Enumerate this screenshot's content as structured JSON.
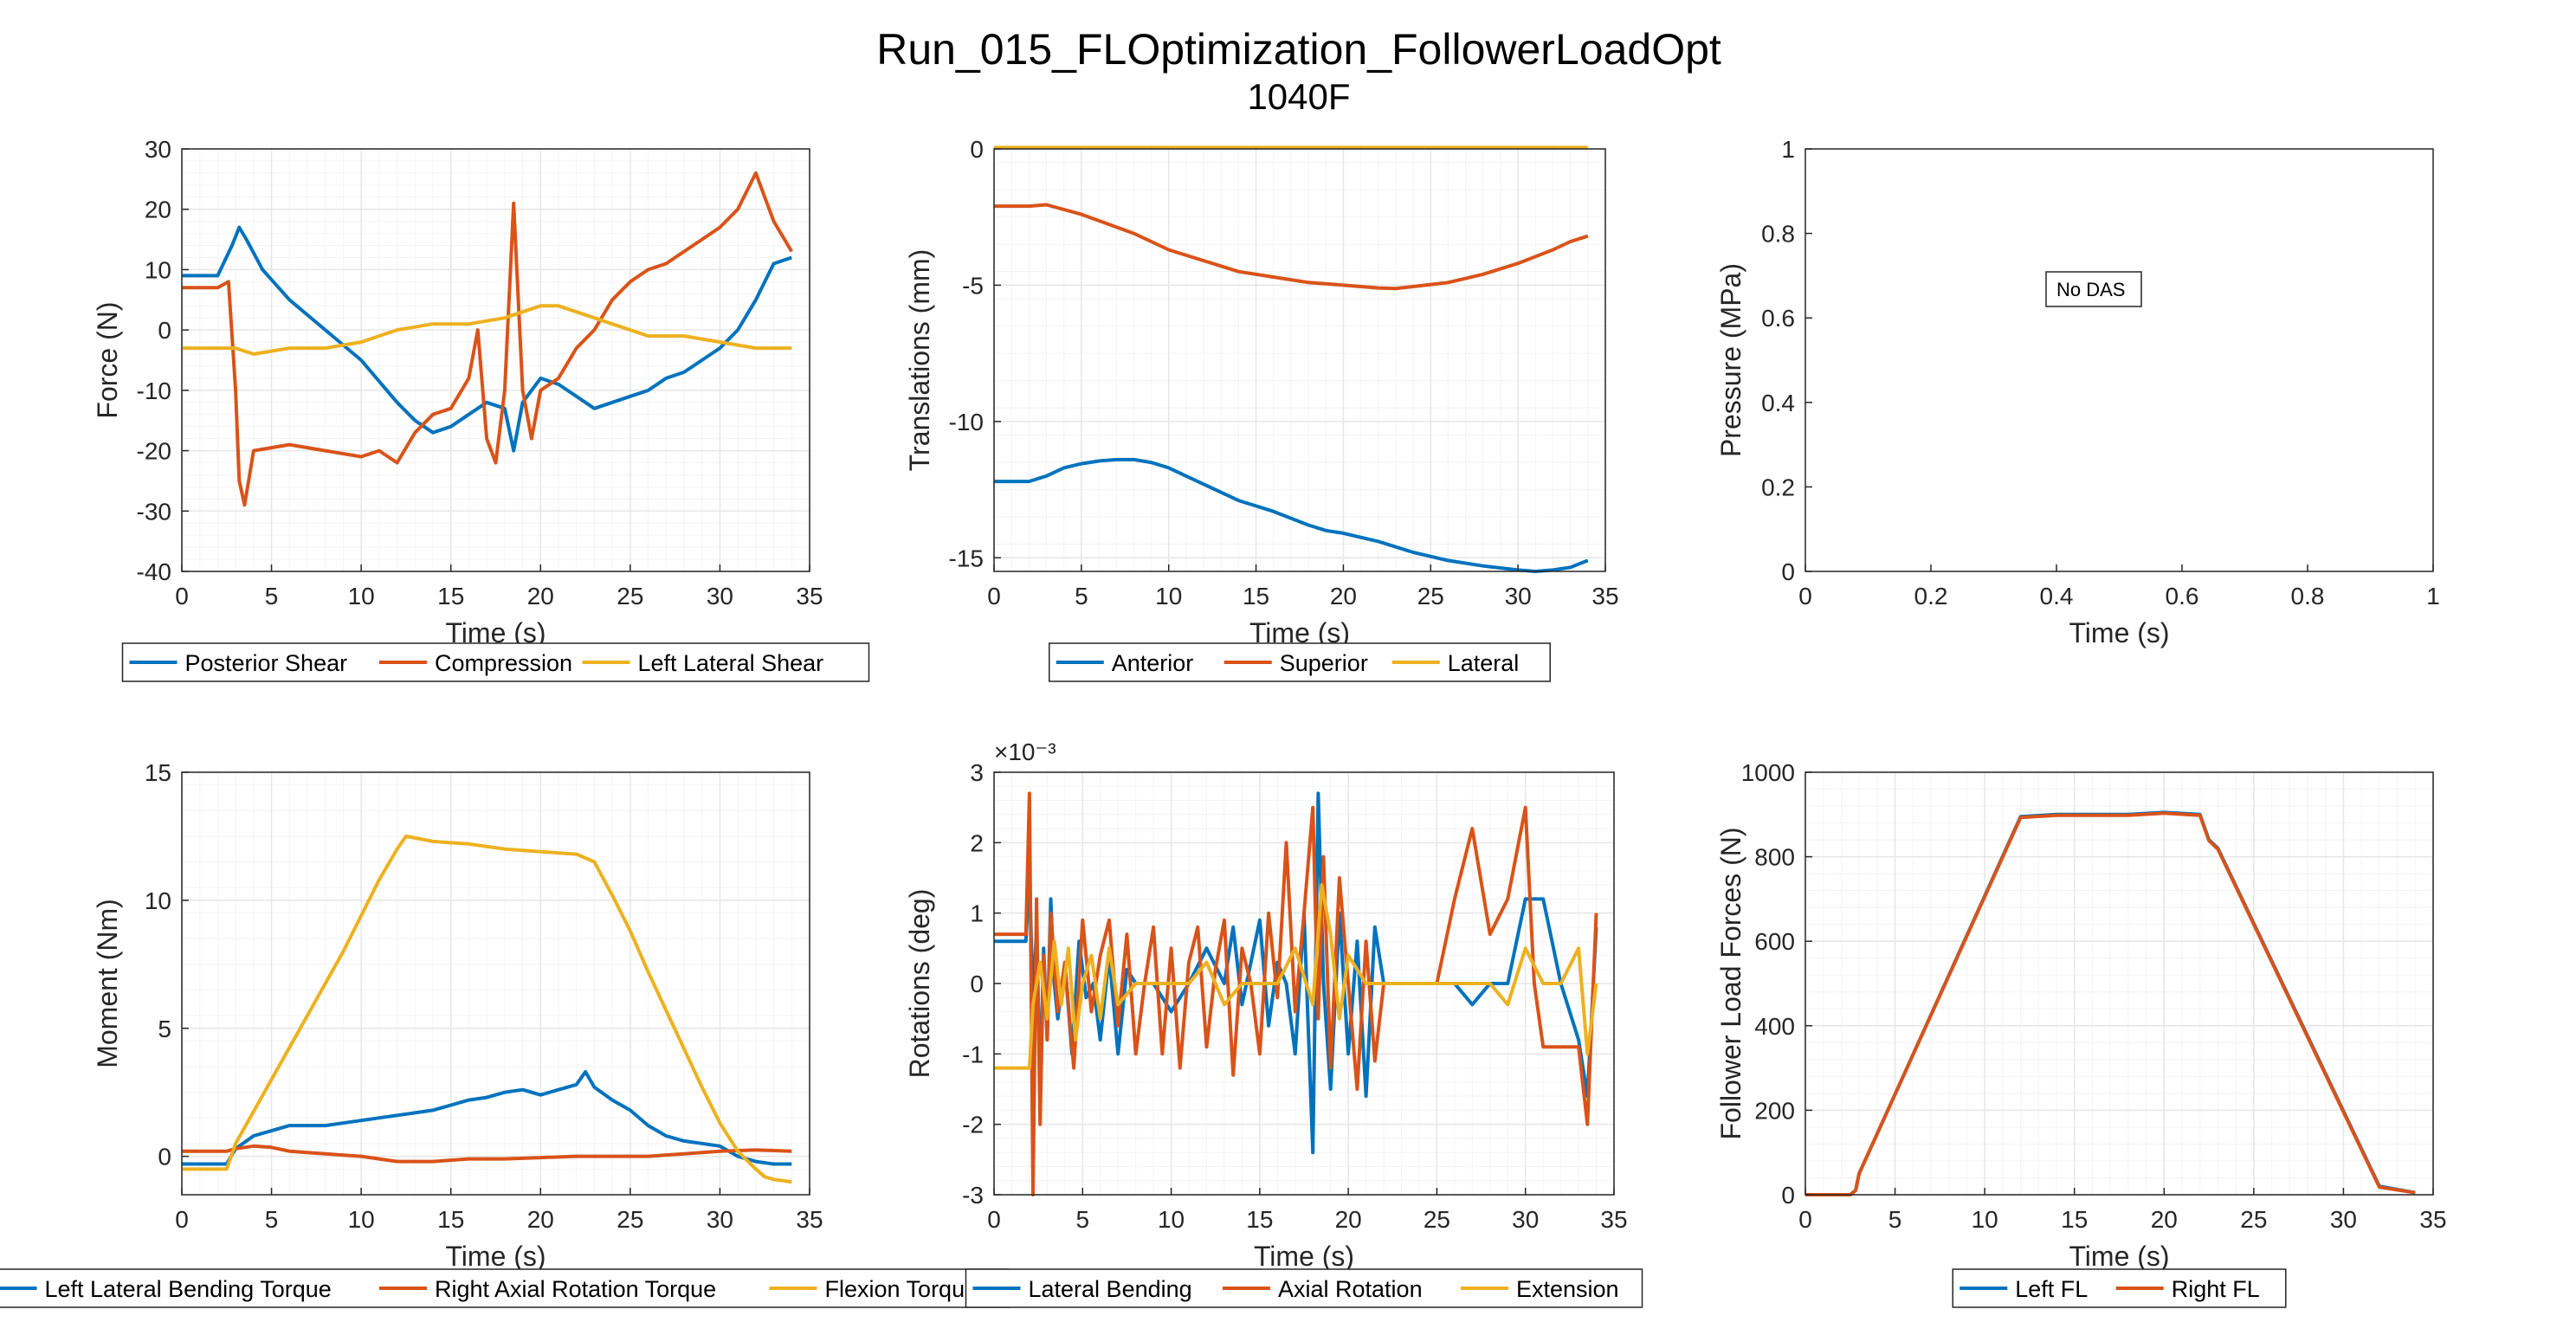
{
  "figure": {
    "title": "Run_015_FLOptimization_FollowerLoadOpt",
    "subtitle": "1040F"
  },
  "colors": {
    "blue": "#0072BD",
    "orange": "#D95319",
    "yellow": "#EDB120",
    "axis": "#262626",
    "grid": "#e6e6e6",
    "minor_grid": "#f3f3f3"
  },
  "chart_data": [
    {
      "type": "line",
      "xlabel": "Time (s)",
      "ylabel": "Force (N)",
      "xlim": [
        0,
        35
      ],
      "ylim": [
        -40,
        30
      ],
      "xticks": [
        0,
        5,
        10,
        15,
        20,
        25,
        30,
        35
      ],
      "yticks": [
        -40,
        -30,
        -20,
        -10,
        0,
        10,
        20,
        30
      ],
      "grid": true,
      "legend": "below",
      "series": [
        {
          "name": "Posterior Shear",
          "color": "blue",
          "x": [
            0,
            2,
            2.8,
            3.2,
            3.6,
            4.5,
            6,
            8,
            10,
            12,
            13,
            14,
            15,
            16,
            17,
            18,
            18.5,
            19,
            20,
            21,
            22,
            23,
            24,
            25,
            26,
            27,
            28,
            29,
            30,
            31,
            32,
            33,
            34
          ],
          "y": [
            9,
            9,
            14,
            17,
            15,
            10,
            5,
            0,
            -5,
            -12,
            -15,
            -17,
            -16,
            -14,
            -12,
            -13,
            -20,
            -12,
            -8,
            -9,
            -11,
            -13,
            -12,
            -11,
            -10,
            -8,
            -7,
            -5,
            -3,
            0,
            5,
            11,
            12
          ]
        },
        {
          "name": "Compression",
          "color": "orange",
          "x": [
            0,
            2,
            2.6,
            3.0,
            3.2,
            3.5,
            4,
            6,
            8,
            10,
            11,
            12,
            13,
            14,
            15,
            16,
            16.5,
            17,
            17.5,
            18,
            18.5,
            19,
            19.5,
            20,
            21,
            22,
            23,
            24,
            25,
            26,
            27,
            28,
            29,
            30,
            31,
            32,
            33,
            34
          ],
          "y": [
            7,
            7,
            8,
            -10,
            -25,
            -29,
            -20,
            -19,
            -20,
            -21,
            -20,
            -22,
            -17,
            -14,
            -13,
            -8,
            0,
            -18,
            -22,
            -10,
            21,
            -10,
            -18,
            -10,
            -8,
            -3,
            0,
            5,
            8,
            10,
            11,
            13,
            15,
            17,
            20,
            26,
            18,
            13
          ]
        },
        {
          "name": "Left Lateral Shear",
          "color": "yellow",
          "x": [
            0,
            2,
            3,
            4,
            6,
            8,
            10,
            12,
            14,
            16,
            18,
            19,
            20,
            21,
            22,
            23,
            24,
            25,
            26,
            28,
            30,
            32,
            34
          ],
          "y": [
            -3,
            -3,
            -3,
            -4,
            -3,
            -3,
            -2,
            0,
            1,
            1,
            2,
            3,
            4,
            4,
            3,
            2,
            1,
            0,
            -1,
            -1,
            -2,
            -3,
            -3
          ]
        }
      ]
    },
    {
      "type": "line",
      "xlabel": "Time (s)",
      "ylabel": "Translations (mm)",
      "xlim": [
        0,
        35
      ],
      "ylim": [
        -15.5,
        0
      ],
      "xticks": [
        0,
        5,
        10,
        15,
        20,
        25,
        30,
        35
      ],
      "yticks": [
        -15,
        -10,
        -5,
        0
      ],
      "grid": true,
      "legend": "below",
      "series": [
        {
          "name": "Anterior",
          "color": "blue",
          "x": [
            0,
            2,
            3,
            4,
            5,
            6,
            7,
            8,
            9,
            10,
            12,
            14,
            16,
            18,
            19,
            20,
            22,
            24,
            26,
            28,
            30,
            31,
            32,
            33,
            34
          ],
          "y": [
            -12.2,
            -12.2,
            -12.0,
            -11.7,
            -11.55,
            -11.45,
            -11.4,
            -11.4,
            -11.5,
            -11.7,
            -12.3,
            -12.9,
            -13.3,
            -13.8,
            -14.0,
            -14.1,
            -14.4,
            -14.8,
            -15.1,
            -15.3,
            -15.45,
            -15.5,
            -15.45,
            -15.35,
            -15.1
          ]
        },
        {
          "name": "Superior",
          "color": "orange",
          "x": [
            0,
            2,
            3,
            5,
            8,
            10,
            12,
            14,
            16,
            18,
            19,
            20,
            22,
            23,
            24,
            26,
            28,
            30,
            32,
            33,
            34
          ],
          "y": [
            -2.1,
            -2.1,
            -2.05,
            -2.4,
            -3.1,
            -3.7,
            -4.1,
            -4.5,
            -4.7,
            -4.9,
            -4.95,
            -5.0,
            -5.1,
            -5.12,
            -5.05,
            -4.9,
            -4.6,
            -4.2,
            -3.7,
            -3.4,
            -3.2
          ]
        },
        {
          "name": "Lateral",
          "color": "yellow",
          "x": [
            0,
            34
          ],
          "y": [
            0.05,
            0.05
          ]
        }
      ]
    },
    {
      "type": "line",
      "xlabel": "Time (s)",
      "ylabel": "Pressure (MPa)",
      "xlim": [
        0,
        1
      ],
      "ylim": [
        0,
        1
      ],
      "xticks": [
        0,
        0.2,
        0.4,
        0.6,
        0.8,
        1
      ],
      "yticks": [
        0,
        0.2,
        0.4,
        0.6,
        0.8,
        1
      ],
      "grid": false,
      "annotation": "No DAS",
      "series": []
    },
    {
      "type": "line",
      "xlabel": "Time (s)",
      "ylabel": "Moment (Nm)",
      "xlim": [
        0,
        35
      ],
      "ylim": [
        -1.5,
        15
      ],
      "xticks": [
        0,
        5,
        10,
        15,
        20,
        25,
        30,
        35
      ],
      "yticks": [
        0,
        5,
        10,
        15
      ],
      "grid": true,
      "legend": "below",
      "series": [
        {
          "name": "Left Lateral Bending Torque",
          "color": "blue",
          "x": [
            0,
            2.5,
            3,
            4,
            5,
            6,
            8,
            10,
            12,
            14,
            15,
            16,
            17,
            18,
            19,
            20,
            21,
            22,
            22.5,
            23,
            24,
            25,
            26,
            27,
            28,
            29,
            30,
            31,
            32,
            33,
            34
          ],
          "y": [
            -0.3,
            -0.3,
            0.3,
            0.8,
            1.0,
            1.2,
            1.2,
            1.4,
            1.6,
            1.8,
            2.0,
            2.2,
            2.3,
            2.5,
            2.6,
            2.4,
            2.6,
            2.8,
            3.3,
            2.7,
            2.2,
            1.8,
            1.2,
            0.8,
            0.6,
            0.5,
            0.4,
            0.0,
            -0.2,
            -0.3,
            -0.3
          ]
        },
        {
          "name": "Right Axial Rotation Torque",
          "color": "orange",
          "x": [
            0,
            2.5,
            3,
            4,
            5,
            6,
            8,
            10,
            12,
            14,
            16,
            18,
            20,
            22,
            24,
            26,
            28,
            30,
            32,
            34
          ],
          "y": [
            0.2,
            0.2,
            0.3,
            0.4,
            0.35,
            0.2,
            0.1,
            0.0,
            -0.2,
            -0.2,
            -0.1,
            -0.1,
            -0.05,
            0.0,
            0.0,
            0.0,
            0.1,
            0.2,
            0.25,
            0.2
          ]
        },
        {
          "name": "Flexion Torque",
          "color": "yellow",
          "x": [
            0,
            2.5,
            3,
            5,
            7,
            9,
            11,
            12,
            12.5,
            14,
            16,
            18,
            20,
            22,
            23,
            24,
            25,
            26,
            27,
            28,
            29,
            30,
            31,
            32,
            32.5,
            33,
            34
          ],
          "y": [
            -0.5,
            -0.5,
            0.5,
            3.0,
            5.5,
            8.0,
            10.8,
            12.0,
            12.5,
            12.3,
            12.2,
            12.0,
            11.9,
            11.8,
            11.5,
            10.2,
            8.8,
            7.2,
            5.7,
            4.2,
            2.7,
            1.3,
            0.2,
            -0.5,
            -0.8,
            -0.9,
            -1.0
          ]
        }
      ]
    },
    {
      "type": "line",
      "xlabel": "Time (s)",
      "ylabel": "Rotations (deg)",
      "exponent_label": "×10⁻³",
      "xlim": [
        0,
        35
      ],
      "ylim": [
        -3,
        3
      ],
      "xticks": [
        0,
        5,
        10,
        15,
        20,
        25,
        30,
        35
      ],
      "yticks": [
        -3,
        -2,
        -1,
        0,
        1,
        2,
        3
      ],
      "grid": true,
      "legend": "below",
      "series": [
        {
          "name": "Lateral Bending",
          "color": "blue",
          "x": [
            0,
            1.8,
            2.0,
            2.2,
            2.4,
            2.6,
            2.8,
            3.0,
            3.2,
            3.4,
            3.6,
            4.0,
            4.4,
            4.8,
            5.2,
            5.6,
            6.0,
            6.5,
            7.0,
            7.5,
            8.0,
            9.0,
            10.0,
            11.0,
            12.0,
            13.0,
            13.5,
            14.0,
            15.0,
            15.5,
            16.0,
            16.5,
            17.0,
            17.5,
            18.0,
            18.3,
            18.6,
            19.0,
            19.5,
            20.0,
            20.5,
            21.0,
            21.5,
            22.0,
            23.0,
            24.0,
            25.0,
            26.0,
            27.0,
            28.0,
            29.0,
            30.0,
            31.0,
            32.0,
            33.0,
            33.5,
            34.0
          ],
          "y": [
            0.6,
            0.6,
            1.6,
            -0.3,
            0.8,
            -1.5,
            0.5,
            -0.8,
            1.2,
            0.0,
            -0.5,
            0.3,
            -1.0,
            0.6,
            -0.2,
            0.0,
            -0.8,
            0.4,
            -1.0,
            0.2,
            0.0,
            0.0,
            -0.4,
            0.0,
            0.5,
            0.0,
            0.8,
            -0.3,
            0.9,
            -0.6,
            0.3,
            0.0,
            -1.0,
            1.0,
            -2.4,
            2.7,
            0.0,
            -1.5,
            1.0,
            -1.0,
            0.6,
            -1.6,
            0.8,
            0.0,
            0.0,
            0.0,
            0.0,
            0.0,
            -0.3,
            0.0,
            0.0,
            1.2,
            1.2,
            0.0,
            -0.8,
            -1.6,
            0.8
          ]
        },
        {
          "name": "Axial Rotation",
          "color": "orange",
          "x": [
            0,
            1.8,
            2.0,
            2.2,
            2.4,
            2.6,
            2.8,
            3.0,
            3.2,
            3.6,
            4.0,
            4.5,
            5.0,
            5.5,
            6.0,
            6.5,
            7.0,
            7.5,
            8.0,
            8.5,
            9.0,
            9.5,
            10.0,
            10.5,
            11.0,
            11.5,
            12.0,
            12.5,
            13.0,
            13.5,
            14.0,
            14.5,
            15.0,
            15.5,
            16.0,
            16.5,
            17.0,
            17.5,
            18.0,
            18.3,
            18.6,
            19.0,
            19.5,
            20.0,
            20.5,
            21.0,
            21.5,
            22.0,
            23.0,
            24.0,
            25.0,
            26.0,
            27.0,
            28.0,
            29.0,
            30.0,
            30.5,
            31.0,
            32.0,
            33.0,
            33.5,
            34.0
          ],
          "y": [
            0.7,
            0.7,
            2.7,
            -3.0,
            1.2,
            -2.0,
            0.4,
            -0.8,
            1.0,
            -0.4,
            0.3,
            -1.2,
            0.9,
            -0.4,
            0.4,
            0.9,
            -0.6,
            0.7,
            -1.0,
            0.0,
            0.8,
            -1.0,
            0.5,
            -1.2,
            0.3,
            0.8,
            -0.9,
            0.2,
            0.9,
            -1.3,
            0.5,
            0.0,
            -1.0,
            1.0,
            -0.2,
            2.0,
            -0.4,
            1.0,
            2.5,
            -0.5,
            1.8,
            -1.2,
            1.5,
            0.0,
            -1.5,
            0.6,
            -1.1,
            0.0,
            0.0,
            0.0,
            0.0,
            1.2,
            2.2,
            0.7,
            1.2,
            2.5,
            0.0,
            -0.9,
            -0.9,
            -0.9,
            -2.0,
            1.0
          ]
        },
        {
          "name": "Extension",
          "color": "yellow",
          "x": [
            0,
            2.0,
            2.2,
            2.6,
            3.0,
            3.4,
            3.8,
            4.2,
            4.6,
            5.0,
            5.5,
            6.0,
            6.5,
            7.0,
            8.0,
            9.0,
            10.0,
            11.0,
            12.0,
            13.0,
            14.0,
            15.0,
            16.0,
            17.0,
            18.0,
            18.5,
            19.0,
            19.5,
            20.0,
            21.0,
            22.0,
            23.0,
            24.0,
            25.0,
            26.0,
            27.0,
            28.0,
            29.0,
            30.0,
            31.0,
            32.0,
            33.0,
            33.5,
            34.0
          ],
          "y": [
            -1.2,
            -1.2,
            -0.3,
            0.3,
            -0.5,
            0.6,
            -0.3,
            0.5,
            -0.8,
            0.0,
            0.4,
            -0.5,
            0.5,
            -0.3,
            0.0,
            0.0,
            0.0,
            0.0,
            0.3,
            -0.3,
            0.0,
            0.0,
            0.0,
            0.5,
            -0.3,
            1.4,
            0.7,
            -0.5,
            0.4,
            0.0,
            0.0,
            0.0,
            0.0,
            0.0,
            0.0,
            0.0,
            0.0,
            -0.3,
            0.5,
            0.0,
            0.0,
            0.5,
            -1.0,
            0.0
          ]
        }
      ]
    },
    {
      "type": "line",
      "xlabel": "Time (s)",
      "ylabel": "Follower Load Forces (N)",
      "xlim": [
        0,
        35
      ],
      "ylim": [
        0,
        1000
      ],
      "xticks": [
        0,
        5,
        10,
        15,
        20,
        25,
        30,
        35
      ],
      "yticks": [
        0,
        200,
        400,
        600,
        800,
        1000
      ],
      "grid": true,
      "legend": "below",
      "series": [
        {
          "name": "Left FL",
          "color": "blue",
          "x": [
            0,
            2.5,
            2.8,
            3.0,
            12,
            14,
            16,
            18,
            20,
            22,
            22.5,
            23,
            32,
            34
          ],
          "y": [
            0,
            0,
            10,
            50,
            895,
            900,
            900,
            900,
            905,
            900,
            840,
            820,
            20,
            5
          ]
        },
        {
          "name": "Right FL",
          "color": "orange",
          "x": [
            0,
            2.5,
            2.8,
            3.0,
            12,
            14,
            16,
            18,
            20,
            22,
            22.5,
            23,
            32,
            34
          ],
          "y": [
            0,
            0,
            10,
            50,
            893,
            898,
            898,
            898,
            903,
            898,
            838,
            818,
            18,
            5
          ]
        }
      ]
    }
  ]
}
